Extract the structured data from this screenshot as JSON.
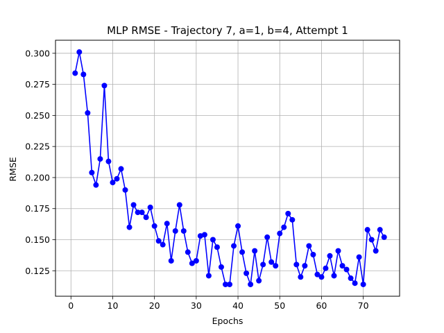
{
  "chart_data": {
    "type": "line",
    "title": "MLP RMSE - Trajectory 7, a=1, b=4, Attempt 1",
    "xlabel": "Epochs",
    "ylabel": "RMSE",
    "xlim": [
      -3.7,
      78.7
    ],
    "ylim": [
      0.1045,
      0.3105
    ],
    "xticks": [
      0,
      10,
      20,
      30,
      40,
      50,
      60,
      70
    ],
    "xtick_labels": [
      "0",
      "10",
      "20",
      "30",
      "40",
      "50",
      "60",
      "70"
    ],
    "yticks": [
      0.125,
      0.15,
      0.175,
      0.2,
      0.225,
      0.25,
      0.275,
      0.3
    ],
    "ytick_labels": [
      "0.125",
      "0.150",
      "0.175",
      "0.200",
      "0.225",
      "0.250",
      "0.275",
      "0.300"
    ],
    "grid": true,
    "series": [
      {
        "color": "#0000ff",
        "marker": "circle",
        "x": [
          1,
          2,
          3,
          4,
          5,
          6,
          7,
          8,
          9,
          10,
          11,
          12,
          13,
          14,
          15,
          16,
          17,
          18,
          19,
          20,
          21,
          22,
          23,
          24,
          25,
          26,
          27,
          28,
          29,
          30,
          31,
          32,
          33,
          34,
          35,
          36,
          37,
          38,
          39,
          40,
          41,
          42,
          43,
          44,
          45,
          46,
          47,
          48,
          49,
          50,
          51,
          52,
          53,
          54,
          55,
          56,
          57,
          58,
          59,
          60,
          61,
          62,
          63,
          64,
          65,
          66,
          67,
          68,
          69,
          70,
          71,
          72,
          73,
          74,
          75
        ],
        "y": [
          0.284,
          0.301,
          0.283,
          0.252,
          0.204,
          0.194,
          0.215,
          0.274,
          0.213,
          0.196,
          0.199,
          0.207,
          0.19,
          0.16,
          0.178,
          0.172,
          0.172,
          0.168,
          0.176,
          0.161,
          0.149,
          0.146,
          0.163,
          0.133,
          0.157,
          0.178,
          0.157,
          0.14,
          0.131,
          0.133,
          0.153,
          0.154,
          0.121,
          0.15,
          0.144,
          0.128,
          0.114,
          0.114,
          0.145,
          0.161,
          0.14,
          0.123,
          0.114,
          0.141,
          0.117,
          0.13,
          0.152,
          0.132,
          0.129,
          0.155,
          0.16,
          0.171,
          0.166,
          0.13,
          0.12,
          0.129,
          0.145,
          0.138,
          0.122,
          0.12,
          0.127,
          0.137,
          0.121,
          0.141,
          0.129,
          0.126,
          0.119,
          0.115,
          0.136,
          0.114,
          0.158,
          0.15,
          0.141,
          0.158,
          0.152
        ]
      }
    ]
  }
}
